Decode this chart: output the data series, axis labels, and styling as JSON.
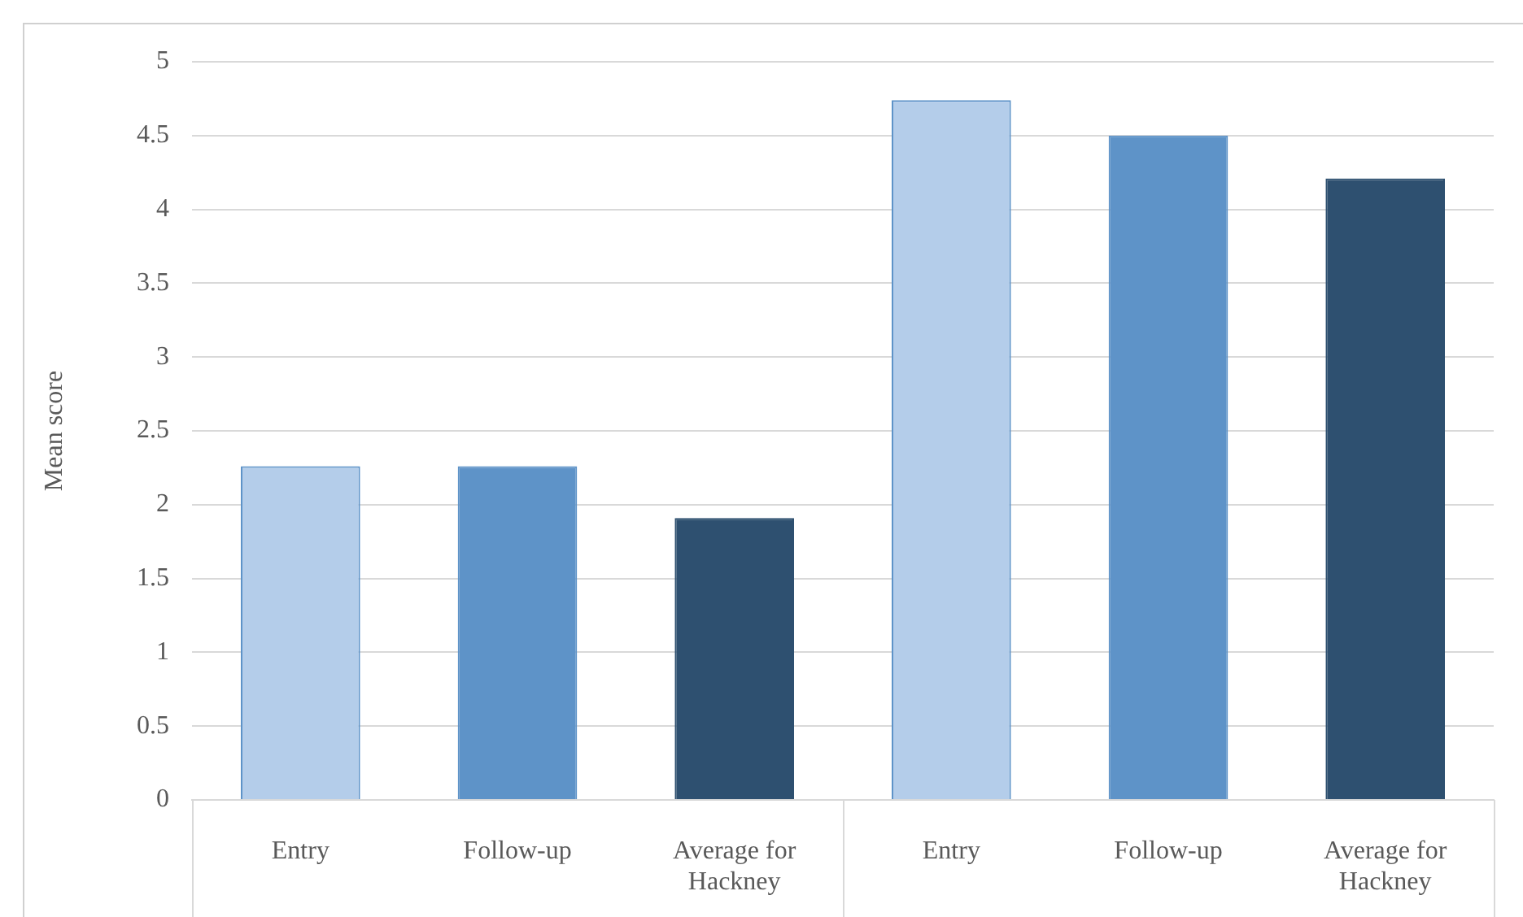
{
  "chart_data": {
    "type": "bar",
    "ylabel": "Mean score",
    "categories": [
      "Entry",
      "Follow-up",
      "Average for Hackney",
      "Entry",
      "Follow-up",
      "Average for Hackney"
    ],
    "values": [
      2.26,
      2.26,
      1.91,
      4.74,
      4.5,
      4.21
    ],
    "colors": [
      "#b4cdea",
      "#5e93c8",
      "#2e5070",
      "#b4cdea",
      "#5e93c8",
      "#2e5070"
    ],
    "ylim": [
      0,
      5
    ],
    "yticks": [
      0,
      0.5,
      1,
      1.5,
      2,
      2.5,
      3,
      3.5,
      4,
      4.5,
      5
    ],
    "grid": "y",
    "legend": false
  }
}
